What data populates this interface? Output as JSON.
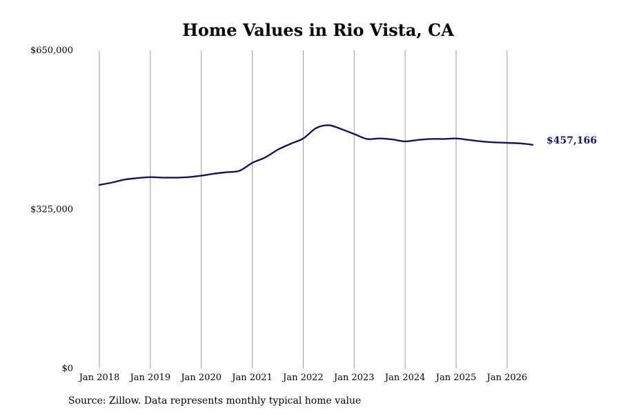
{
  "colors": {
    "line": "#14145e",
    "grid": "#9a9a9a",
    "end_label": "#14145e"
  },
  "source_note": "Source: Zillow. Data represents monthly typical home value",
  "chart_data": {
    "type": "line",
    "title": "Home Values in Rio Vista, CA",
    "xlabel": "",
    "ylabel": "",
    "ylim": [
      0,
      650000
    ],
    "y_ticks": [
      {
        "value": 0,
        "label": "$0"
      },
      {
        "value": 325000,
        "label": "$325,000"
      },
      {
        "value": 650000,
        "label": "$650,000"
      }
    ],
    "x_range": [
      "2018-01",
      "2026-08"
    ],
    "x_ticks": [
      {
        "date": "2018-01",
        "label": "Jan 2018"
      },
      {
        "date": "2019-01",
        "label": "Jan 2019"
      },
      {
        "date": "2020-01",
        "label": "Jan 2020"
      },
      {
        "date": "2021-01",
        "label": "Jan 2021"
      },
      {
        "date": "2022-01",
        "label": "Jan 2022"
      },
      {
        "date": "2023-01",
        "label": "Jan 2023"
      },
      {
        "date": "2024-01",
        "label": "Jan 2024"
      },
      {
        "date": "2025-01",
        "label": "Jan 2025"
      },
      {
        "date": "2026-01",
        "label": "Jan 2026"
      }
    ],
    "grid": {
      "vertical": true,
      "horizontal": false
    },
    "end_label": "$457,166",
    "series": [
      {
        "values": [
          {
            "x": "2018-01",
            "y": 375000
          },
          {
            "x": "2018-04",
            "y": 380000
          },
          {
            "x": "2018-07",
            "y": 386000
          },
          {
            "x": "2018-10",
            "y": 389000
          },
          {
            "x": "2019-01",
            "y": 391000
          },
          {
            "x": "2019-04",
            "y": 390000
          },
          {
            "x": "2019-07",
            "y": 390000
          },
          {
            "x": "2019-10",
            "y": 391000
          },
          {
            "x": "2020-01",
            "y": 394000
          },
          {
            "x": "2020-04",
            "y": 398000
          },
          {
            "x": "2020-07",
            "y": 401000
          },
          {
            "x": "2020-10",
            "y": 404000
          },
          {
            "x": "2021-01",
            "y": 420000
          },
          {
            "x": "2021-04",
            "y": 431000
          },
          {
            "x": "2021-07",
            "y": 447000
          },
          {
            "x": "2021-10",
            "y": 459000
          },
          {
            "x": "2022-01",
            "y": 470000
          },
          {
            "x": "2022-04",
            "y": 491000
          },
          {
            "x": "2022-07",
            "y": 497000
          },
          {
            "x": "2022-10",
            "y": 489000
          },
          {
            "x": "2023-01",
            "y": 479000
          },
          {
            "x": "2023-04",
            "y": 469000
          },
          {
            "x": "2023-07",
            "y": 470000
          },
          {
            "x": "2023-10",
            "y": 468000
          },
          {
            "x": "2024-01",
            "y": 464000
          },
          {
            "x": "2024-04",
            "y": 467000
          },
          {
            "x": "2024-07",
            "y": 469000
          },
          {
            "x": "2024-10",
            "y": 469000
          },
          {
            "x": "2025-01",
            "y": 470000
          },
          {
            "x": "2025-04",
            "y": 467000
          },
          {
            "x": "2025-07",
            "y": 464000
          },
          {
            "x": "2025-10",
            "y": 462000
          },
          {
            "x": "2026-01",
            "y": 461000
          },
          {
            "x": "2026-04",
            "y": 460000
          },
          {
            "x": "2026-07",
            "y": 457166
          }
        ]
      }
    ]
  }
}
